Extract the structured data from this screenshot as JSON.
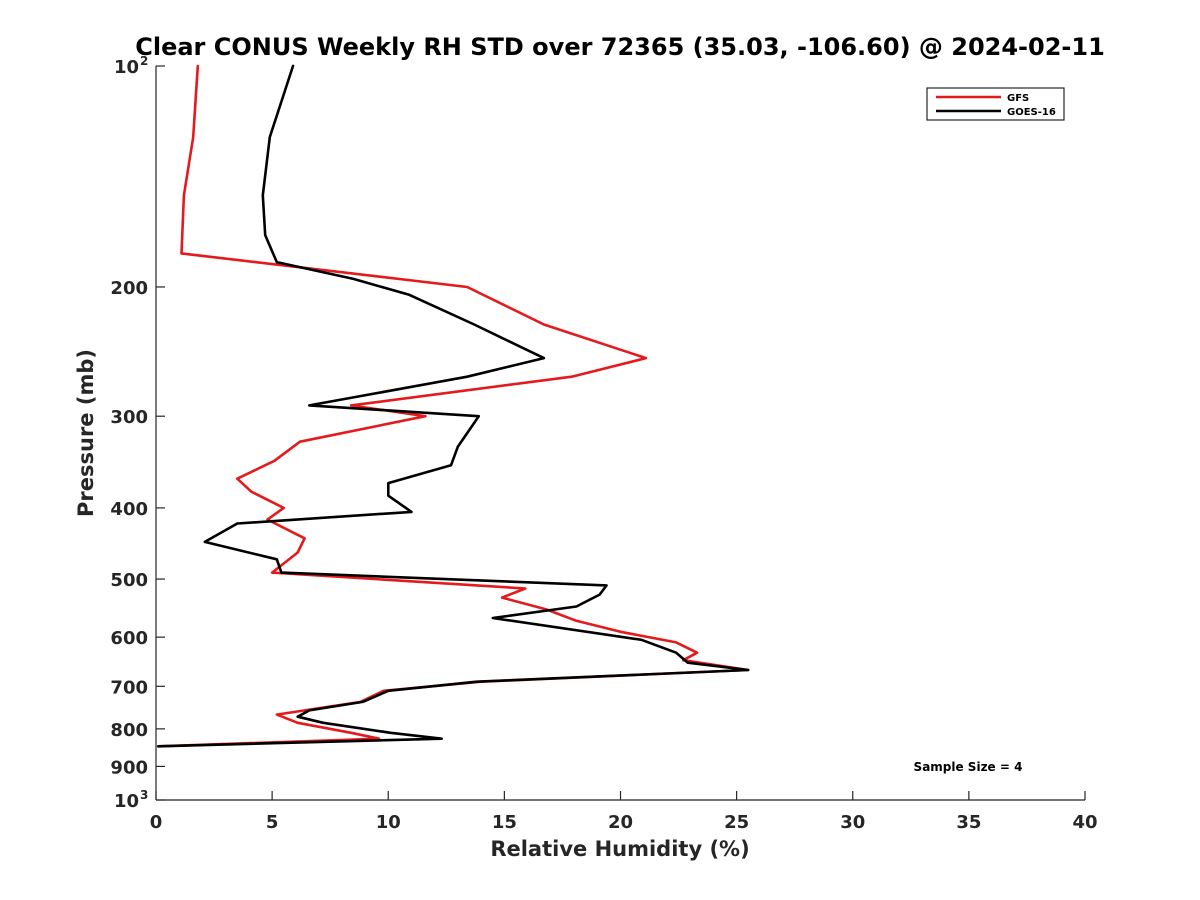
{
  "chart_data": {
    "type": "line",
    "title": "Clear CONUS Weekly RH STD over 72365 (35.03, -106.60) @ 2024-02-11",
    "xlabel": "Relative Humidity (%)",
    "ylabel": "Pressure (mb)",
    "xlim": [
      0,
      40
    ],
    "ylim": [
      100,
      1000
    ],
    "y_scale": "log",
    "y_reversed": true,
    "grid": false,
    "legend_position": "top-right",
    "annotation": "Sample Size = 4",
    "x_ticks": [
      {
        "value": 0,
        "label": "0"
      },
      {
        "value": 5,
        "label": "5"
      },
      {
        "value": 10,
        "label": "10"
      },
      {
        "value": 15,
        "label": "15"
      },
      {
        "value": 20,
        "label": "20"
      },
      {
        "value": 25,
        "label": "25"
      },
      {
        "value": 30,
        "label": "30"
      },
      {
        "value": 35,
        "label": "35"
      },
      {
        "value": 40,
        "label": "40"
      }
    ],
    "y_ticks": [
      {
        "value": 100,
        "label": "10",
        "exp": "2"
      },
      {
        "value": 200,
        "label": "200"
      },
      {
        "value": 300,
        "label": "300"
      },
      {
        "value": 400,
        "label": "400"
      },
      {
        "value": 500,
        "label": "500"
      },
      {
        "value": 600,
        "label": "600"
      },
      {
        "value": 700,
        "label": "700"
      },
      {
        "value": 800,
        "label": "800"
      },
      {
        "value": 900,
        "label": "900"
      },
      {
        "value": 1000,
        "label": "10",
        "exp": "3"
      }
    ],
    "series": [
      {
        "name": "GFS",
        "color": "#e41a1c",
        "points": [
          [
            1.8,
            100
          ],
          [
            1.6,
            125
          ],
          [
            1.2,
            150
          ],
          [
            1.1,
            180
          ],
          [
            13.4,
            200
          ],
          [
            16.7,
            225
          ],
          [
            21.1,
            250
          ],
          [
            17.9,
            265
          ],
          [
            8.4,
            290
          ],
          [
            11.6,
            300
          ],
          [
            6.2,
            325
          ],
          [
            5.1,
            345
          ],
          [
            3.5,
            365
          ],
          [
            4.1,
            380
          ],
          [
            5.5,
            400
          ],
          [
            4.8,
            415
          ],
          [
            6.4,
            440
          ],
          [
            6.1,
            460
          ],
          [
            5.0,
            490
          ],
          [
            15.9,
            515
          ],
          [
            14.9,
            530
          ],
          [
            16.8,
            550
          ],
          [
            18.1,
            570
          ],
          [
            20.0,
            590
          ],
          [
            22.4,
            610
          ],
          [
            23.3,
            630
          ],
          [
            22.7,
            645
          ],
          [
            25.5,
            665
          ],
          [
            14.0,
            690
          ],
          [
            9.8,
            710
          ],
          [
            8.8,
            735
          ],
          [
            5.2,
            765
          ],
          [
            6.1,
            785
          ],
          [
            8.4,
            810
          ],
          [
            9.6,
            825
          ],
          [
            0.1,
            845
          ]
        ]
      },
      {
        "name": "GOES-16",
        "color": "#000000",
        "points": [
          [
            5.9,
            100
          ],
          [
            4.9,
            125
          ],
          [
            4.6,
            150
          ],
          [
            4.7,
            170
          ],
          [
            5.2,
            185
          ],
          [
            8.5,
            195
          ],
          [
            10.9,
            205
          ],
          [
            13.7,
            225
          ],
          [
            16.7,
            250
          ],
          [
            13.4,
            265
          ],
          [
            6.6,
            290
          ],
          [
            13.9,
            300
          ],
          [
            13.0,
            330
          ],
          [
            12.7,
            350
          ],
          [
            10.0,
            370
          ],
          [
            10.0,
            385
          ],
          [
            11.0,
            405
          ],
          [
            3.5,
            420
          ],
          [
            2.1,
            445
          ],
          [
            5.2,
            470
          ],
          [
            5.4,
            490
          ],
          [
            19.4,
            510
          ],
          [
            19.1,
            525
          ],
          [
            18.1,
            545
          ],
          [
            14.5,
            565
          ],
          [
            20.9,
            605
          ],
          [
            22.4,
            630
          ],
          [
            22.9,
            650
          ],
          [
            25.5,
            665
          ],
          [
            13.8,
            690
          ],
          [
            10.0,
            710
          ],
          [
            8.9,
            735
          ],
          [
            6.6,
            755
          ],
          [
            6.1,
            770
          ],
          [
            7.2,
            785
          ],
          [
            10.1,
            810
          ],
          [
            12.3,
            825
          ],
          [
            0.1,
            845
          ]
        ]
      }
    ]
  }
}
